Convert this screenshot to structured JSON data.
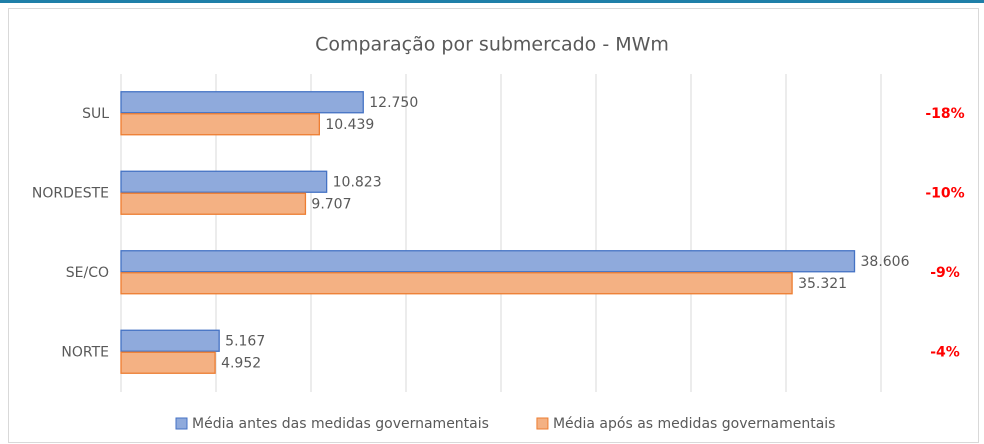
{
  "chart_data": {
    "type": "barh",
    "title": "Comparação por submercado - MWm",
    "categories": [
      "SUL",
      "NORDESTE",
      "SE/CO",
      "NORTE"
    ],
    "series": [
      {
        "name": "Média antes das medidas governamentais",
        "color": "#8faadc",
        "edgecolor": "#4472c4",
        "values": [
          12750,
          10823,
          38606,
          5167
        ],
        "value_labels": [
          "12.750",
          "10.823",
          "38.606",
          "5.167"
        ]
      },
      {
        "name": "Média após as medidas governamentais",
        "color": "#f4b183",
        "edgecolor": "#ed7d31",
        "values": [
          10439,
          9707,
          35321,
          4952
        ],
        "value_labels": [
          "10.439",
          "9.707",
          "35.321",
          "4.952"
        ]
      }
    ],
    "annotations": [
      "-18%",
      "-10%",
      "-9%",
      "-4%"
    ],
    "xlim": [
      0,
      40000
    ],
    "xticks": [
      0,
      5000,
      10000,
      15000,
      20000,
      25000,
      30000,
      35000,
      40000
    ],
    "grid": true
  }
}
